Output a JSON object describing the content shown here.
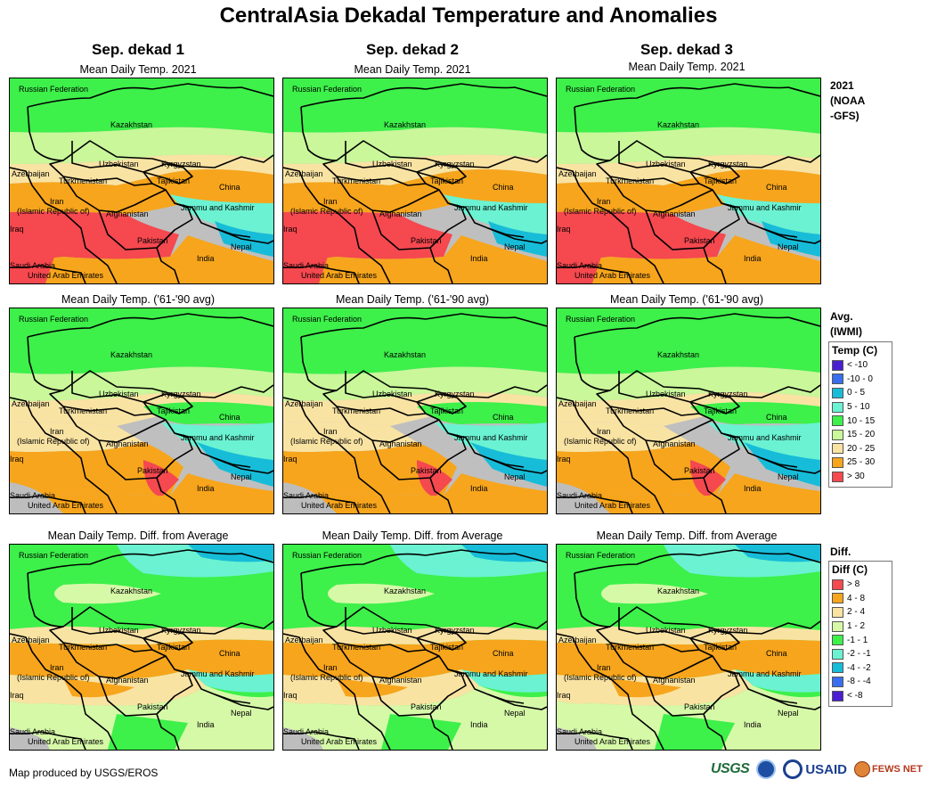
{
  "title": "CentralAsia Dekadal Temperature and Anomalies",
  "columns": [
    "Sep. dekad 1",
    "Sep. dekad 2",
    "Sep. dekad 3"
  ],
  "rows": [
    {
      "key": "current",
      "panel_title": "Mean Daily Temp. 2021",
      "side_label": "2021\n(NOAA\n-GFS)"
    },
    {
      "key": "average",
      "panel_title": "Mean Daily Temp. ('61-'90 avg)",
      "side_label": "Avg.\n(IWMI)"
    },
    {
      "key": "difference",
      "panel_title": "Mean Daily Temp. Diff. from Average",
      "side_label": "Diff."
    }
  ],
  "map_labels": {
    "russia": "Russian Federation",
    "kazakhstan": "Kazakhstan",
    "uzbekistan": "Uzbekistan",
    "kyrgyzstan": "Kyrgyzstan",
    "azerbaijan": "Azerbaijan",
    "turkmenistan": "Turkmenistan",
    "tajikistan": "Tajikistan",
    "china": "China",
    "iran": "Iran",
    "iran2": "(Islamic Republic of)",
    "afghanistan": "Afghanistan",
    "jammu": "Jammu and Kashmir",
    "iraq": "Iraq",
    "pakistan": "Pakistan",
    "nepal": "Nepal",
    "india": "India",
    "saudi": "Saudi Arabia",
    "uae": "United Arab Emirates"
  },
  "temp_legend": {
    "title": "Temp (C)",
    "classes": [
      {
        "label": "< -10",
        "color": "#4a1fd1"
      },
      {
        "label": "-10 - 0",
        "color": "#3a6ef0"
      },
      {
        "label": "0 - 5",
        "color": "#17bcd8"
      },
      {
        "label": "5 - 10",
        "color": "#6af2d2"
      },
      {
        "label": "10 - 15",
        "color": "#3df04a"
      },
      {
        "label": "15 - 20",
        "color": "#c9f79a"
      },
      {
        "label": "20 - 25",
        "color": "#f9e3a3"
      },
      {
        "label": "25 - 30",
        "color": "#f7a51c"
      },
      {
        "label": "> 30",
        "color": "#f5484f"
      }
    ]
  },
  "diff_legend": {
    "title": "Diff (C)",
    "classes": [
      {
        "label": "> 8",
        "color": "#f5484f"
      },
      {
        "label": "4 - 8",
        "color": "#f7a51c"
      },
      {
        "label": "2 - 4",
        "color": "#f9e3a3"
      },
      {
        "label": "1 - 2",
        "color": "#d6f9a8"
      },
      {
        "label": "-1 - 1",
        "color": "#3df04a"
      },
      {
        "label": "-2 - -1",
        "color": "#6af2d2"
      },
      {
        "label": "-4 - -2",
        "color": "#17bcd8"
      },
      {
        "label": "-8 - -4",
        "color": "#3a6ef0"
      },
      {
        "label": "< -8",
        "color": "#4a1fd1"
      }
    ]
  },
  "credit": "Map produced by USGS/EROS",
  "logos": {
    "usgs": "USGS",
    "usaid": "USAID",
    "fews": "FEWS NET"
  }
}
